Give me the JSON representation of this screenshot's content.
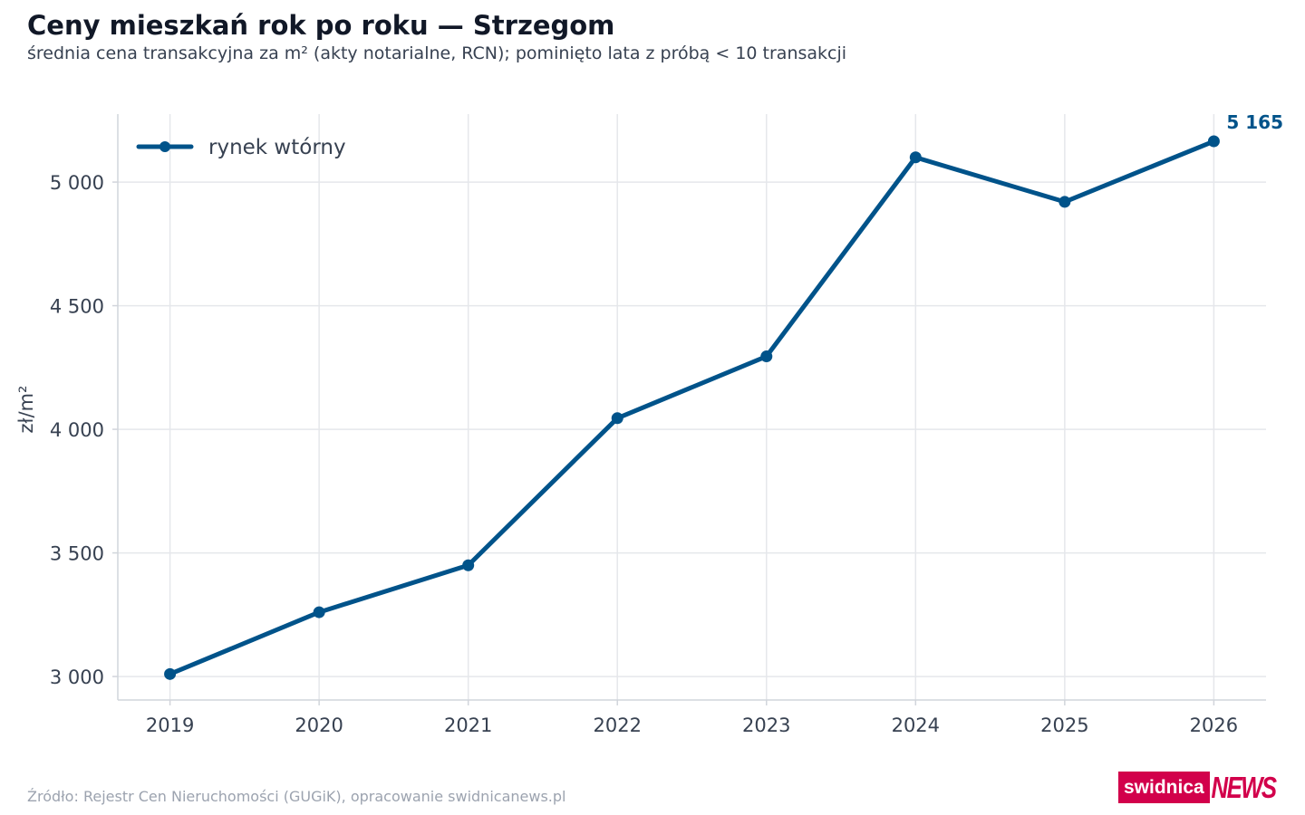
{
  "title": "Ceny mieszkań rok po roku — Strzegom",
  "subtitle": "średnia cena transakcyjna za m² (akty notarialne, RCN); pominięto lata z próbą < 10 transakcji",
  "source": "Źródło: Rejestr Cen Nieruchomości (GUGiK), opracowanie swidnicanews.pl",
  "logo": {
    "part1": "swidnica",
    "part2": "NEWS",
    "color": "#d2004b"
  },
  "chart_data": {
    "type": "line",
    "x": [
      2019,
      2020,
      2021,
      2022,
      2023,
      2024,
      2025,
      2026
    ],
    "series": [
      {
        "name": "rynek wtórny",
        "color": "#00538a",
        "values": [
          3010,
          3260,
          3450,
          4045,
          4295,
          5100,
          4920,
          5165
        ]
      }
    ],
    "end_label": "5 165",
    "ylabel": "zł/m²",
    "xlabel": "",
    "ylim": [
      2905,
      5275
    ],
    "xlim": [
      2018.65,
      2026.35
    ],
    "yticks": [
      3000,
      3500,
      4000,
      4500,
      5000
    ],
    "ytick_labels": [
      "3 000",
      "3 500",
      "4 000",
      "4 500",
      "5 000"
    ],
    "xtick_labels": [
      "2019",
      "2020",
      "2021",
      "2022",
      "2023",
      "2024",
      "2025",
      "2026"
    ],
    "grid": true,
    "legend": "top-left"
  }
}
